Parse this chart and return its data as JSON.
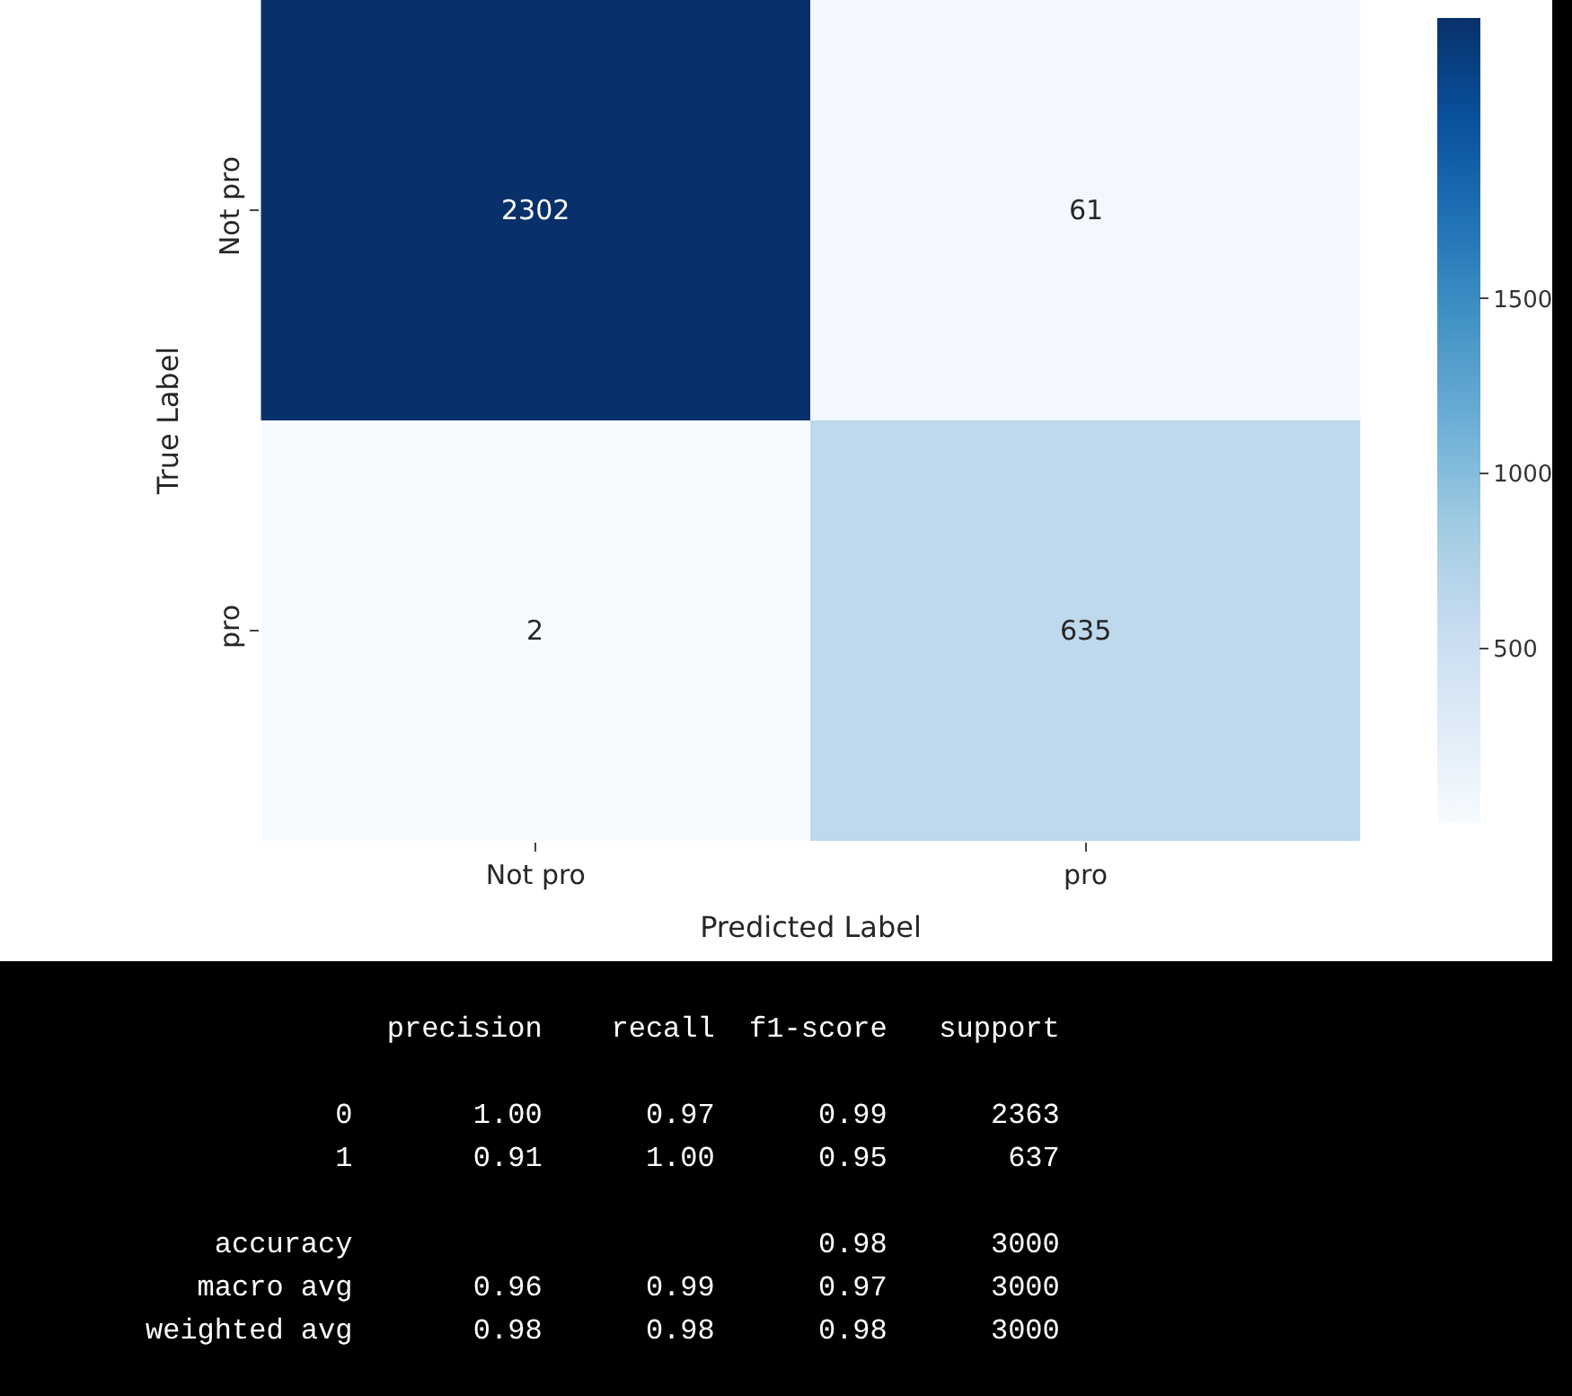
{
  "chart_data": [
    {
      "type": "heatmap",
      "xlabel": "Predicted Label",
      "ylabel": "True Label",
      "categories": [
        "Not pro",
        "pro"
      ],
      "y_categories": [
        "Not pro",
        "pro"
      ],
      "cells": [
        [
          2302,
          61
        ],
        [
          2,
          635
        ]
      ],
      "data_labels": true,
      "clim": [
        2,
        2302
      ],
      "cticks": [
        500,
        1000,
        1500
      ]
    },
    {
      "type": "other",
      "annotations": [
        "              precision    recall  f1-score   support",
        "           0       1.00      0.97      0.99      2363",
        "           1       0.91      1.00      0.95       637",
        "    accuracy                           0.98      3000",
        "   macro avg       0.96      0.99      0.97      3000",
        "weighted avg       0.98      0.98      0.98      3000"
      ]
    }
  ]
}
